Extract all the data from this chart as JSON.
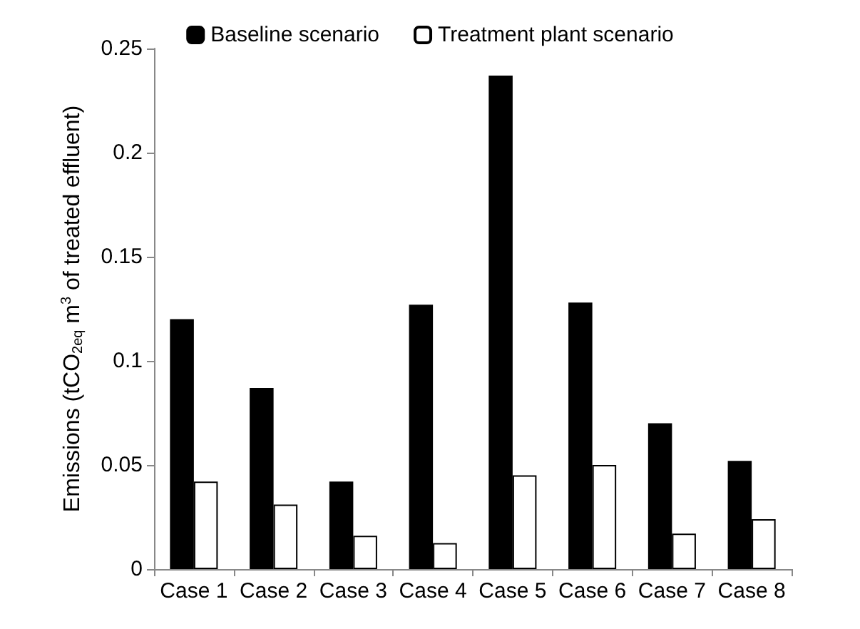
{
  "chart_data": {
    "type": "bar",
    "ylabel": "Emissions (tCO$_{2eq}$ m$^{3}$ of treated effluent)",
    "categories": [
      "Case 1",
      "Case 2",
      "Case 3",
      "Case 4",
      "Case 5",
      "Case 6",
      "Case 7",
      "Case 8"
    ],
    "series": [
      {
        "name": "Baseline scenario",
        "color": "#000000",
        "values": [
          0.12,
          0.087,
          0.042,
          0.127,
          0.237,
          0.128,
          0.07,
          0.052
        ]
      },
      {
        "name": "Treatment plant scenario",
        "color": "#ffffff",
        "values": [
          0.042,
          0.031,
          0.016,
          0.0125,
          0.045,
          0.05,
          0.017,
          0.024
        ]
      }
    ],
    "ylim": [
      0,
      0.25
    ],
    "yticks": [
      0,
      0.05,
      0.1,
      0.15,
      0.2,
      0.25
    ],
    "grid": false,
    "legend": "top"
  }
}
